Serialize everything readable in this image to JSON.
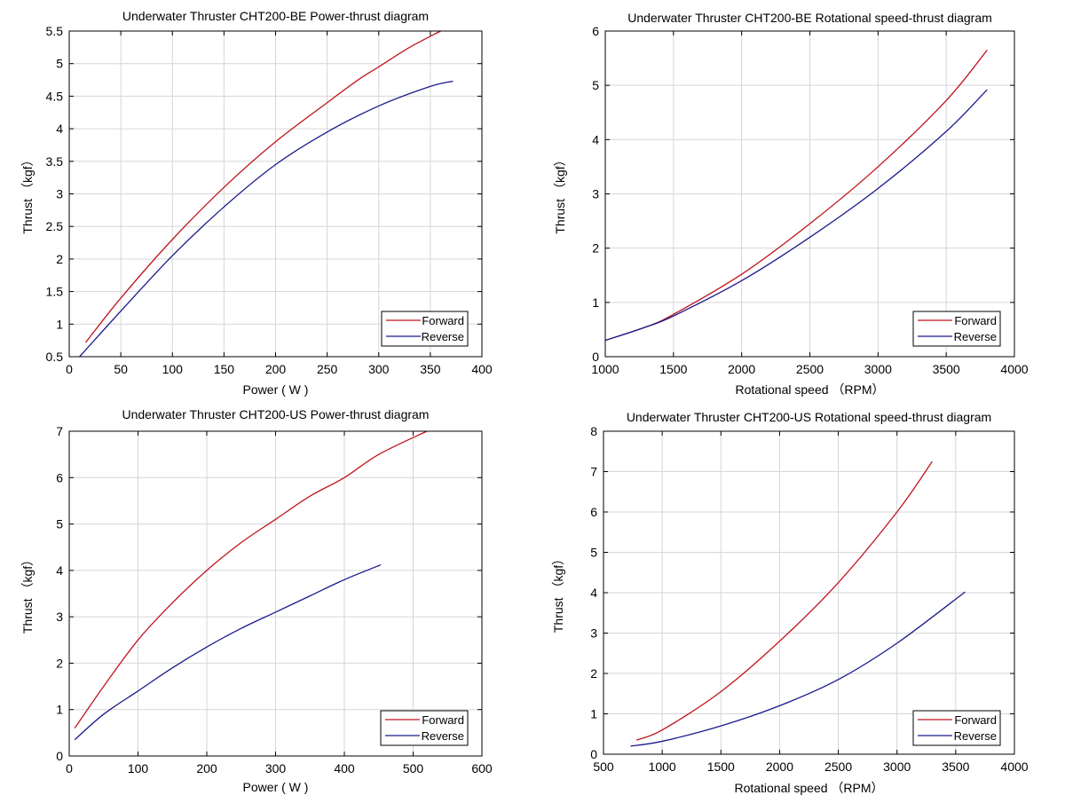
{
  "chart_data": [
    {
      "type": "line",
      "title": "Underwater Thruster CHT200-BE Power-thrust diagram",
      "xlabel": "Power ( W )",
      "ylabel": "Thrust （kgf）",
      "xlim": [
        0,
        400
      ],
      "ylim": [
        0.5,
        5.5
      ],
      "xticks": [
        0,
        50,
        100,
        150,
        200,
        250,
        300,
        350,
        400
      ],
      "yticks": [
        0.5,
        1,
        1.5,
        2,
        2.5,
        3,
        3.5,
        4,
        4.5,
        5,
        5.5
      ],
      "xtick_labels": [
        "0",
        "50",
        "100",
        "150",
        "200",
        "250",
        "300",
        "350",
        "400"
      ],
      "ytick_labels": [
        "0.5",
        "1",
        "1.5",
        "2",
        "2.5",
        "3",
        "3.5",
        "4",
        "4.5",
        "5",
        "5.5"
      ],
      "grid": true,
      "legend_position": "bottom-right",
      "series": [
        {
          "name": "Forward",
          "color": "#c0141e",
          "x": [
            16,
            50,
            100,
            150,
            200,
            250,
            280,
            300,
            330,
            360
          ],
          "y": [
            0.72,
            1.4,
            2.3,
            3.1,
            3.8,
            4.4,
            4.75,
            4.95,
            5.25,
            5.5
          ]
        },
        {
          "name": "Reverse",
          "color": "#1a1a8c",
          "x": [
            10,
            50,
            100,
            150,
            200,
            250,
            300,
            350,
            372
          ],
          "y": [
            0.5,
            1.2,
            2.05,
            2.8,
            3.45,
            3.95,
            4.35,
            4.65,
            4.73
          ]
        }
      ]
    },
    {
      "type": "line",
      "title": "Underwater Thruster CHT200-BE Rotational speed-thrust diagram",
      "xlabel": "Rotational speed （RPM）",
      "ylabel": "Thrust （kgf）",
      "xlim": [
        1000,
        4000
      ],
      "ylim": [
        0,
        6
      ],
      "xticks": [
        1000,
        1500,
        2000,
        2500,
        3000,
        3500,
        4000
      ],
      "yticks": [
        0,
        1,
        2,
        3,
        4,
        5,
        6
      ],
      "xtick_labels": [
        "1000",
        "1500",
        "2000",
        "2500",
        "3000",
        "3500",
        "4000"
      ],
      "ytick_labels": [
        "0",
        "1",
        "2",
        "3",
        "4",
        "5",
        "6"
      ],
      "grid": true,
      "legend_position": "bottom-right",
      "series": [
        {
          "name": "Forward",
          "color": "#c0141e",
          "x": [
            1000,
            1300,
            1500,
            2000,
            2500,
            3000,
            3500,
            3800
          ],
          "y": [
            0.3,
            0.55,
            0.78,
            1.52,
            2.45,
            3.5,
            4.72,
            5.65
          ]
        },
        {
          "name": "Reverse",
          "color": "#1a1a8c",
          "x": [
            1000,
            1300,
            1500,
            2000,
            2500,
            3000,
            3500,
            3800
          ],
          "y": [
            0.3,
            0.55,
            0.75,
            1.4,
            2.2,
            3.1,
            4.15,
            4.92
          ]
        }
      ]
    },
    {
      "type": "line",
      "title": "Underwater Thruster CHT200-US Power-thrust diagram",
      "xlabel": "Power ( W )",
      "ylabel": "Thrust （kgf）",
      "xlim": [
        0,
        600
      ],
      "ylim": [
        0,
        7
      ],
      "xticks": [
        0,
        100,
        200,
        300,
        400,
        500,
        600
      ],
      "yticks": [
        0,
        1,
        2,
        3,
        4,
        5,
        6,
        7
      ],
      "xtick_labels": [
        "0",
        "100",
        "200",
        "300",
        "400",
        "500",
        "600"
      ],
      "ytick_labels": [
        "0",
        "1",
        "2",
        "3",
        "4",
        "5",
        "6",
        "7"
      ],
      "grid": true,
      "legend_position": "bottom-right",
      "series": [
        {
          "name": "Forward",
          "color": "#c0141e",
          "x": [
            8,
            50,
            100,
            150,
            200,
            250,
            300,
            350,
            400,
            450,
            520
          ],
          "y": [
            0.6,
            1.5,
            2.5,
            3.3,
            4.0,
            4.6,
            5.1,
            5.6,
            6.0,
            6.5,
            7.0
          ]
        },
        {
          "name": "Reverse",
          "color": "#1a1a8c",
          "x": [
            8,
            50,
            100,
            150,
            200,
            250,
            300,
            350,
            400,
            453
          ],
          "y": [
            0.35,
            0.9,
            1.4,
            1.9,
            2.35,
            2.75,
            3.1,
            3.45,
            3.8,
            4.12
          ]
        }
      ]
    },
    {
      "type": "line",
      "title": "Underwater Thruster CHT200-US Rotational speed-thrust diagram",
      "xlabel": "Rotational speed （RPM）",
      "ylabel": "Thrust （kgf）",
      "xlim": [
        500,
        4000
      ],
      "ylim": [
        0,
        8
      ],
      "xticks": [
        500,
        1000,
        1500,
        2000,
        2500,
        3000,
        3500,
        4000
      ],
      "yticks": [
        0,
        1,
        2,
        3,
        4,
        5,
        6,
        7,
        8
      ],
      "xtick_labels": [
        "500",
        "1000",
        "1500",
        "2000",
        "2500",
        "3000",
        "3500",
        "4000"
      ],
      "ytick_labels": [
        "0",
        "1",
        "2",
        "3",
        "4",
        "5",
        "6",
        "7",
        "8"
      ],
      "grid": true,
      "legend_position": "bottom-right",
      "series": [
        {
          "name": "Forward",
          "color": "#c0141e",
          "x": [
            780,
            1000,
            1500,
            2000,
            2500,
            3000,
            3300
          ],
          "y": [
            0.35,
            0.6,
            1.55,
            2.8,
            4.25,
            6.0,
            7.25
          ]
        },
        {
          "name": "Reverse",
          "color": "#1a1a8c",
          "x": [
            730,
            1000,
            1500,
            2000,
            2500,
            3000,
            3580
          ],
          "y": [
            0.2,
            0.32,
            0.7,
            1.2,
            1.85,
            2.75,
            4.02
          ]
        }
      ]
    }
  ]
}
